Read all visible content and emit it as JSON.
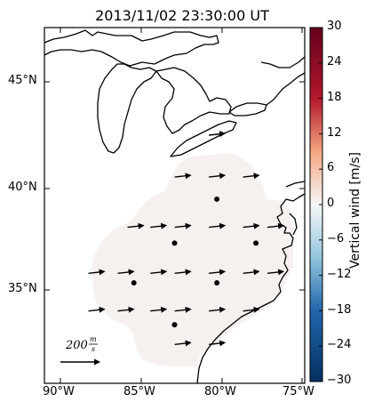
{
  "title": "2013/11/02 23:30:00 UT",
  "lon_ticks": [
    "90°W",
    "85°W",
    "80°W",
    "75°W"
  ],
  "lat_ticks": [
    "45°N",
    "40°N",
    "35°N"
  ],
  "colorbar": {
    "label": "Vertical wind [m/s]",
    "ticks": [
      "30",
      "24",
      "18",
      "12",
      "6",
      "0",
      "−6",
      "−12",
      "−18",
      "−24",
      "−30"
    ],
    "colors": {
      "high": "#67001f",
      "mid_high": "#d6604d",
      "mid": "#f7f7f7",
      "mid_low": "#4393c3",
      "low": "#053061"
    }
  },
  "reference_arrow": {
    "label": "200 m/s"
  },
  "chart_data": {
    "type": "map",
    "extent": {
      "lon": [
        -91,
        -75
      ],
      "lat": [
        30.5,
        47.5
      ]
    },
    "field_value_mps": 0,
    "vector_rows": [
      {
        "lat": 42.4,
        "lons": [
          -80.4
        ]
      },
      {
        "lat": 40.4,
        "lons": [
          -82.5,
          -80.4,
          -78.3
        ]
      },
      {
        "lat": 38.0,
        "lons": [
          -85.4,
          -84.0,
          -82.5,
          -80.4,
          -78.3,
          -76.8
        ]
      },
      {
        "lat": 35.8,
        "lons": [
          -87.8,
          -86.0,
          -84.0,
          -82.5,
          -80.4,
          -78.3,
          -76.8
        ]
      },
      {
        "lat": 34.0,
        "lons": [
          -87.8,
          -86.0,
          -84.0,
          -82.5,
          -80.4,
          -78.3
        ]
      },
      {
        "lat": 32.4,
        "lons": [
          -82.5,
          -80.4
        ]
      }
    ],
    "station_dots": [
      {
        "lon": -80.4,
        "lat": 39.3
      },
      {
        "lon": -83.0,
        "lat": 37.2
      },
      {
        "lon": -78.0,
        "lat": 37.2
      },
      {
        "lon": -85.5,
        "lat": 35.3
      },
      {
        "lon": -80.4,
        "lat": 35.3
      },
      {
        "lon": -83.0,
        "lat": 33.3
      }
    ]
  }
}
